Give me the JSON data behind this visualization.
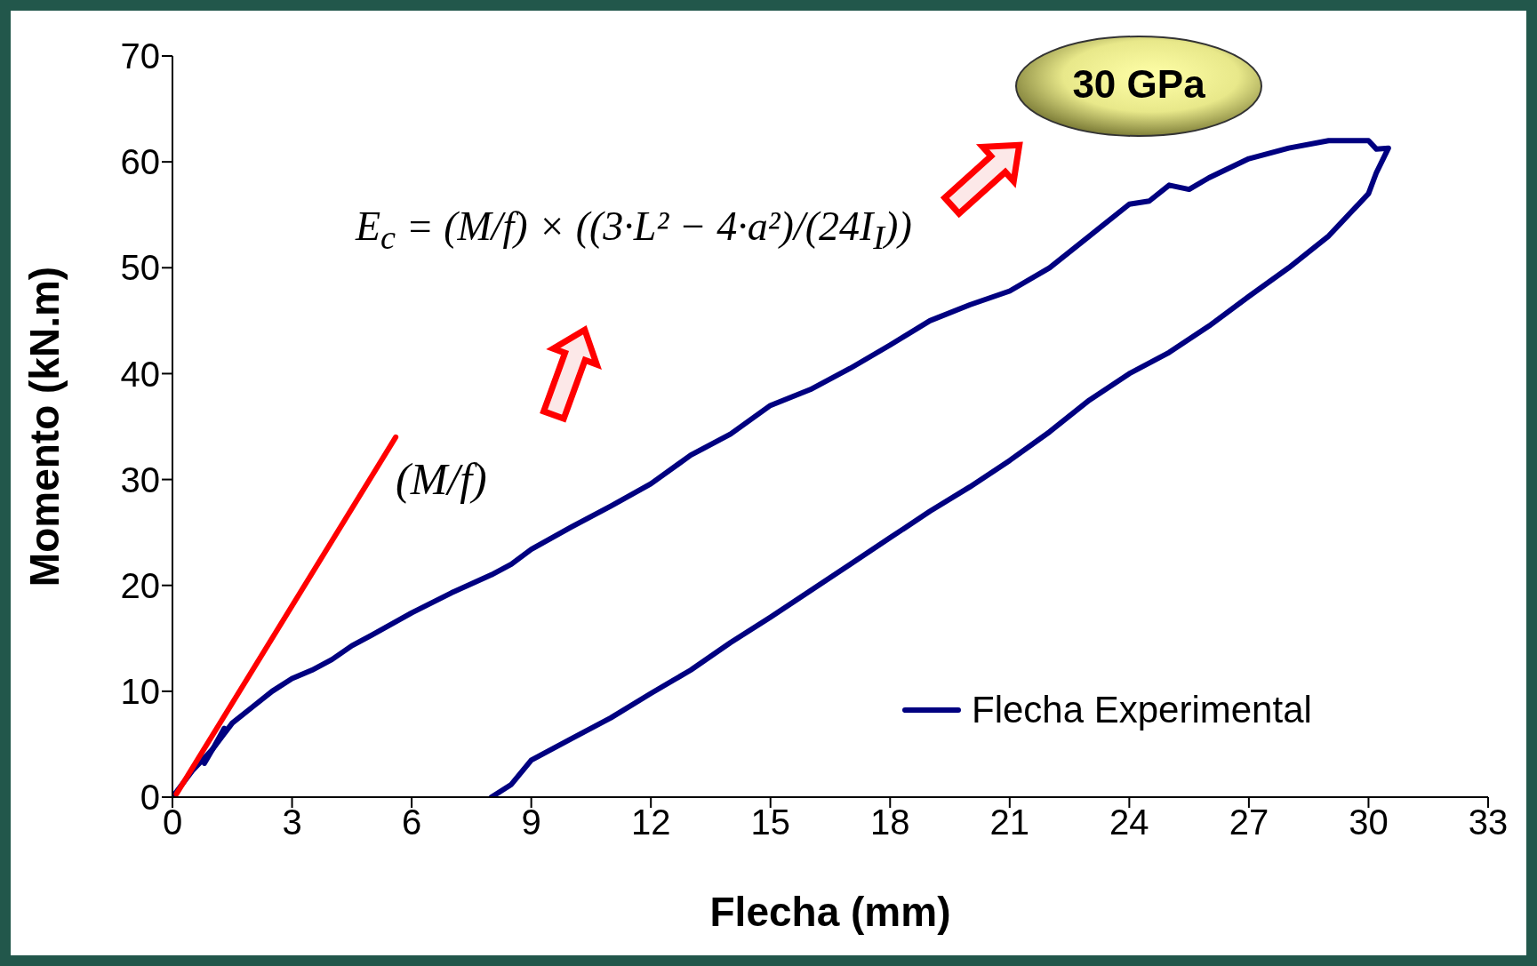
{
  "chart_data": {
    "type": "line",
    "xlabel": "Flecha (mm)",
    "ylabel": "Momento (kN.m)",
    "xlim": [
      0,
      33
    ],
    "xticks": [
      0,
      3,
      6,
      9,
      12,
      15,
      18,
      21,
      24,
      27,
      30,
      33
    ],
    "ylim": [
      0,
      70
    ],
    "yticks": [
      0,
      10,
      20,
      30,
      40,
      50,
      60,
      70
    ],
    "legend": "bottom right",
    "line_style": "solid",
    "marker": "none",
    "series": [
      {
        "name": "Flecha Experimental",
        "color": "#000080",
        "x": [
          0,
          0.5,
          1,
          1.5,
          2,
          2.5,
          3,
          3.5,
          4,
          4.5,
          5,
          6,
          7,
          8,
          8.5,
          9,
          10,
          11,
          12,
          13,
          14,
          15,
          16,
          17,
          18,
          19,
          20,
          21,
          22,
          23,
          24,
          24.5,
          25,
          25.5,
          26,
          27,
          28,
          29,
          30,
          30.2,
          30.5,
          30.2,
          30,
          29,
          28,
          27,
          26,
          25,
          24,
          23,
          22,
          21,
          20,
          19,
          18,
          17,
          16,
          15,
          14,
          13,
          12,
          11,
          10,
          9,
          8.5,
          8
        ],
        "values": [
          0,
          2.5,
          4.5,
          7,
          8.5,
          10,
          11.2,
          12,
          13,
          14.3,
          15.3,
          17.4,
          19.3,
          21,
          22,
          23.4,
          25.5,
          27.5,
          29.6,
          32.3,
          34.3,
          37,
          38.5,
          40.5,
          42.7,
          45,
          46.5,
          47.8,
          50,
          53,
          56,
          56.3,
          57.8,
          57.4,
          58.5,
          60.3,
          61.3,
          62,
          62,
          61.2,
          61.3,
          59,
          57,
          53,
          50,
          47.3,
          44.5,
          42,
          40,
          37.5,
          34.5,
          31.8,
          29.3,
          27,
          24.5,
          22,
          19.5,
          17,
          14.6,
          12,
          9.8,
          7.5,
          5.5,
          3.5,
          1.2,
          0
        ]
      },
      {
        "color": "#000080",
        "x": [
          0.8,
          1.05,
          1.3
        ],
        "values": [
          3.2,
          4.8,
          6.5
        ]
      },
      {
        "color": "#ff0000",
        "x": [
          0.1,
          5.6
        ],
        "values": [
          0.3,
          34
        ]
      }
    ],
    "annotations": [
      "30 GPa",
      "E$_{c}$ = (M/f) × ((3·L² − 4·a²)/(24I$_{I}$))",
      "(M/f)"
    ]
  }
}
